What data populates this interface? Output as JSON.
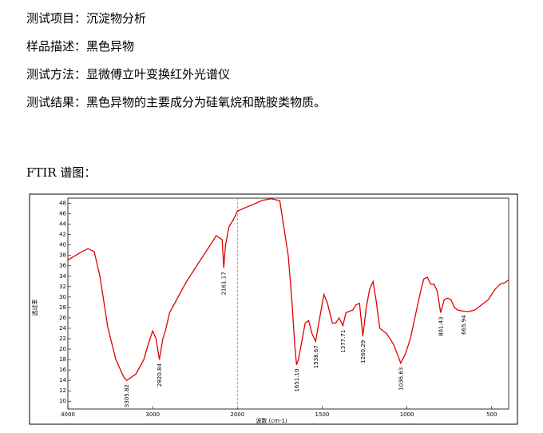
{
  "document": {
    "lines": [
      "测试项目：沉淀物分析",
      "样品描述：黑色异物",
      "测试方法：显微傅立叶变换红外光谱仪",
      "测试结果：黑色异物的主要成分为硅氧烷和酰胺类物质。"
    ],
    "spectrum_heading": "FTIR 谱图："
  },
  "chart_data": {
    "type": "line",
    "color": "#e00000",
    "xlabel": "波数 (cm-1)",
    "ylabel": "透过率",
    "xlim": [
      4000,
      400
    ],
    "x_break": 2000,
    "x_break_zoom": 2,
    "xticks": [
      4000,
      3000,
      2000,
      1500,
      1000,
      500
    ],
    "ylim": [
      8.5,
      49
    ],
    "yticks": [
      10,
      12,
      14,
      16,
      18,
      20,
      22,
      24,
      26,
      28,
      30,
      32,
      34,
      36,
      38,
      40,
      42,
      44,
      46,
      48
    ],
    "x": [
      4000,
      3858,
      3764,
      3689,
      3623,
      3528,
      3434,
      3340,
      3305.82,
      3198,
      3104,
      3050,
      3000,
      2960,
      2920.84,
      2880,
      2850,
      2800,
      2600,
      2400,
      2300,
      2250,
      2180,
      2161.17,
      2140,
      2100,
      2050,
      2000,
      1950,
      1900,
      1850,
      1800,
      1750,
      1700,
      1680,
      1660,
      1651.1,
      1640,
      1600,
      1580,
      1560,
      1538.67,
      1520,
      1490,
      1470,
      1440,
      1420,
      1400,
      1377.71,
      1360,
      1320,
      1300,
      1280,
      1260.29,
      1240,
      1220,
      1200,
      1180,
      1160,
      1120,
      1080,
      1050,
      1036.63,
      1010,
      980,
      950,
      920,
      900,
      880,
      860,
      840,
      820,
      801.43,
      780,
      760,
      740,
      720,
      700,
      665.94,
      640,
      600,
      560,
      520,
      480,
      450,
      420,
      400
    ],
    "values": [
      37.1,
      38.5,
      39.3,
      38.7,
      34.1,
      24.1,
      18.0,
      14.6,
      14.0,
      15.2,
      18.0,
      21.0,
      23.5,
      22.0,
      18.0,
      22.0,
      23.5,
      27.0,
      33.0,
      38.0,
      40.5,
      41.8,
      41.0,
      35.6,
      40.0,
      43.5,
      44.8,
      46.5,
      47.2,
      47.9,
      48.6,
      48.9,
      48.5,
      37.9,
      30.0,
      20.0,
      17.0,
      18.0,
      25.0,
      25.5,
      23.0,
      21.5,
      25.0,
      30.5,
      29.0,
      25.0,
      25.0,
      26.0,
      24.5,
      27.0,
      27.5,
      28.5,
      28.8,
      22.5,
      28.0,
      31.5,
      33.0,
      29.0,
      24.0,
      23.0,
      21.0,
      18.5,
      17.3,
      19.0,
      22.0,
      26.5,
      31.0,
      33.5,
      33.8,
      32.5,
      32.5,
      31.0,
      27.0,
      29.5,
      29.8,
      29.5,
      28.0,
      27.5,
      27.3,
      27.2,
      27.5,
      28.5,
      29.5,
      31.5,
      32.5,
      32.8,
      33.3
    ],
    "peaks": [
      3305.82,
      2920.84,
      2161.17,
      {
        "value": 1651.1,
        "label": "1651.10"
      },
      1538.67,
      1377.71,
      1260.29,
      1036.63,
      801.43,
      665.94
    ]
  }
}
